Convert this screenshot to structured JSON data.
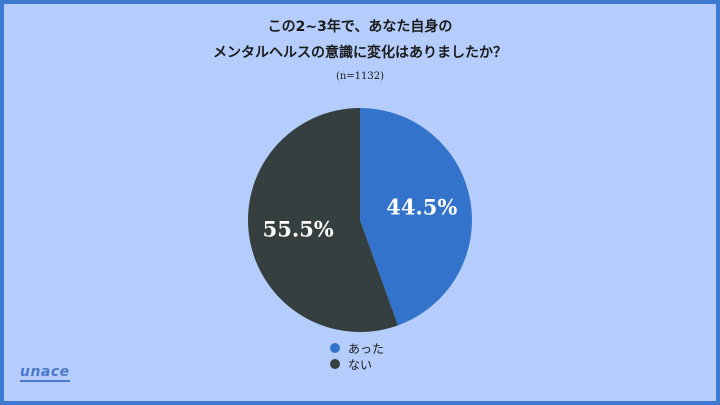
{
  "title_line1": "この2~3年で、あなた自身の",
  "title_line2": "メンタルヘルスの意識に変化はありましたか？",
  "sample_size": "(n=1132)",
  "logo_text": "unace",
  "chart_data": {
    "type": "pie",
    "slices": [
      {
        "label": "あった",
        "value": 44.5,
        "display": "44.5%",
        "color": "#3373cc"
      },
      {
        "label": "ない",
        "value": 55.5,
        "display": "55.5%",
        "color": "#363f3f"
      }
    ],
    "start_angle_deg": 0,
    "direction": "clockwise",
    "legend_position": "bottom"
  }
}
